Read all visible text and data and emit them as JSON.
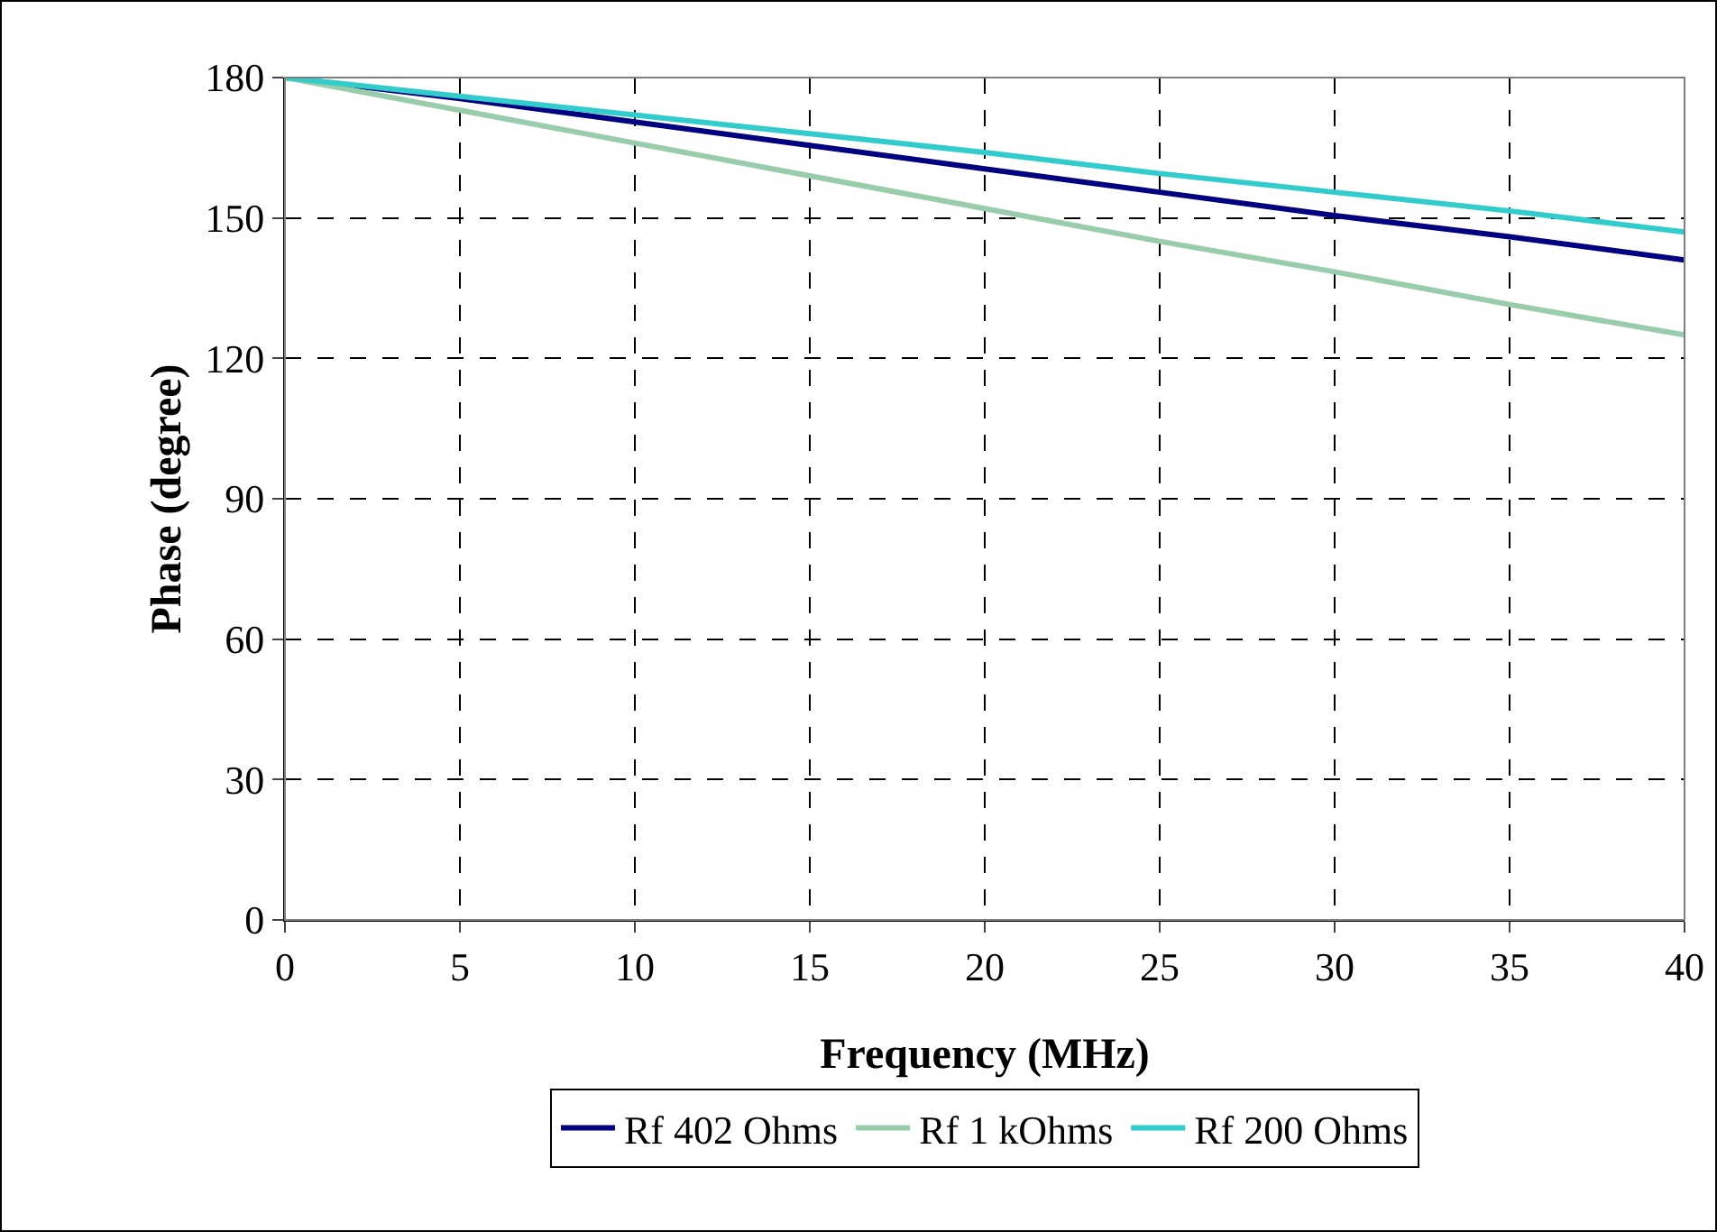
{
  "chart_data": {
    "type": "line",
    "xlabel": "Frequency (MHz)",
    "ylabel": "Phase (degree)",
    "x": [
      0,
      5,
      10,
      15,
      20,
      25,
      30,
      35,
      40
    ],
    "series": [
      {
        "name": "Rf 402 Ohms",
        "color": "#000080",
        "values": [
          180,
          175.5,
          170.5,
          165.5,
          160.5,
          155.5,
          150.5,
          146,
          141
        ]
      },
      {
        "name": "Rf 1 kOhms",
        "color": "#99ccaa",
        "values": [
          180,
          173,
          166,
          159,
          152,
          145,
          138.5,
          131.5,
          125
        ]
      },
      {
        "name": "Rf 200 Ohms",
        "color": "#33cccc",
        "values": [
          180,
          176,
          172,
          168,
          164,
          159.5,
          155.5,
          151.5,
          147
        ]
      }
    ],
    "xlim": [
      0,
      40
    ],
    "xticks": [
      0,
      5,
      10,
      15,
      20,
      25,
      30,
      35,
      40
    ],
    "ylim": [
      0,
      180
    ],
    "yticks": [
      0,
      30,
      60,
      90,
      120,
      150,
      180
    ],
    "grid": true,
    "legend": "bottom",
    "marker": "none",
    "line_style": "solid"
  }
}
